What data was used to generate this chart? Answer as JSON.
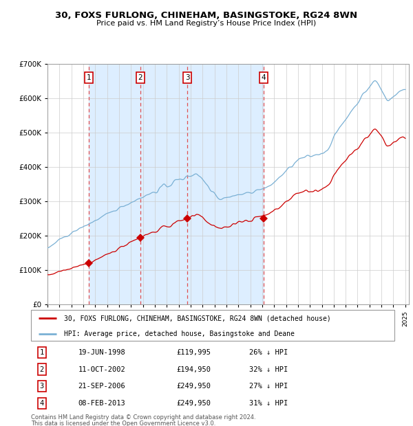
{
  "title_line1": "30, FOXS FURLONG, CHINEHAM, BASINGSTOKE, RG24 8WN",
  "title_line2": "Price paid vs. HM Land Registry’s House Price Index (HPI)",
  "transactions": [
    {
      "num": 1,
      "date": "19-JUN-1998",
      "price": 119995,
      "pct": "26%",
      "dir": "↓"
    },
    {
      "num": 2,
      "date": "11-OCT-2002",
      "price": 194950,
      "pct": "32%",
      "dir": "↓"
    },
    {
      "num": 3,
      "date": "21-SEP-2006",
      "price": 249950,
      "pct": "27%",
      "dir": "↓"
    },
    {
      "num": 4,
      "date": "08-FEB-2013",
      "price": 249950,
      "pct": "31%",
      "dir": "↓"
    }
  ],
  "transaction_dates_decimal": [
    1998.46,
    2002.78,
    2006.72,
    2013.1
  ],
  "transaction_prices": [
    119995,
    194950,
    249950,
    249950
  ],
  "legend_property": "30, FOXS FURLONG, CHINEHAM, BASINGSTOKE, RG24 8WN (detached house)",
  "legend_hpi": "HPI: Average price, detached house, Basingstoke and Deane",
  "footer_line1": "Contains HM Land Registry data © Crown copyright and database right 2024.",
  "footer_line2": "This data is licensed under the Open Government Licence v3.0.",
  "property_color": "#cc0000",
  "hpi_color": "#7ab0d4",
  "shade_color": "#ddeeff",
  "dashed_color": "#e05050",
  "bg_color": "#f0f4f8",
  "ylim": [
    0,
    700000
  ],
  "yticks": [
    0,
    100000,
    200000,
    300000,
    400000,
    500000,
    600000,
    700000
  ]
}
